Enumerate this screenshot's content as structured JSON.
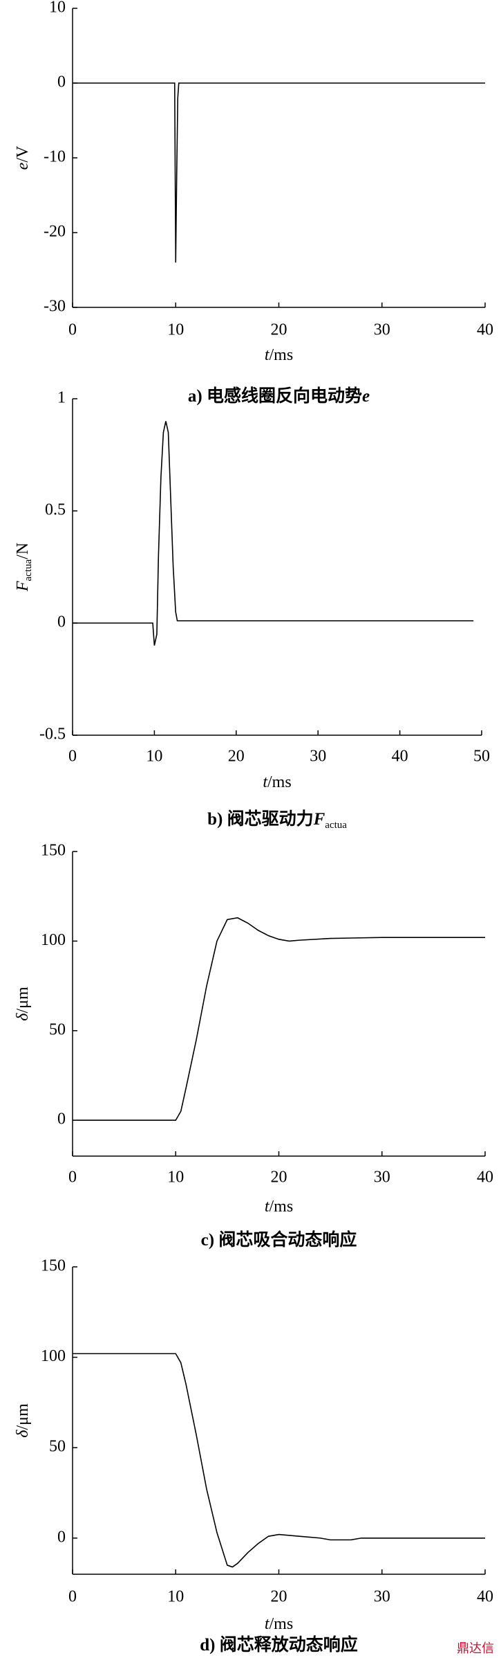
{
  "chart_data": [
    {
      "type": "line",
      "x_label": [
        {
          "text": "t",
          "italic": true
        },
        {
          "text": "/ms"
        }
      ],
      "y_label": [
        {
          "text": "e",
          "italic": true
        },
        {
          "text": "/V"
        }
      ],
      "caption": [
        {
          "text": "a)  电感线圈反向电动势"
        },
        {
          "text": "e",
          "italic": true
        }
      ],
      "xlim": [
        0,
        40
      ],
      "xticks": [
        0,
        10,
        20,
        30,
        40
      ],
      "ylim": [
        -30,
        10
      ],
      "yticks": [
        -30,
        -20,
        -10,
        0,
        10
      ],
      "color": "#000000",
      "series": [
        {
          "x": [
            0,
            9.9,
            10,
            10.1,
            10.2,
            10.3,
            40
          ],
          "values": [
            0,
            0,
            -24,
            -12,
            -2,
            0,
            0
          ]
        }
      ]
    },
    {
      "type": "line",
      "x_label": [
        {
          "text": "t",
          "italic": true
        },
        {
          "text": "/ms"
        }
      ],
      "y_label": [
        {
          "text": "F",
          "italic": true
        },
        {
          "text": "actua",
          "sub": true
        },
        {
          "text": "/N"
        }
      ],
      "caption": [
        {
          "text": "b)  阀芯驱动力"
        },
        {
          "text": "F",
          "italic": true
        },
        {
          "text": "actua",
          "sub": true
        }
      ],
      "xlim": [
        0,
        50
      ],
      "xticks": [
        0,
        10,
        20,
        30,
        40,
        50
      ],
      "ylim": [
        -0.5,
        1
      ],
      "yticks": [
        -0.5,
        0,
        0.5,
        1
      ],
      "color": "#000000",
      "series": [
        {
          "x": [
            0,
            9.8,
            10,
            10.3,
            10.5,
            10.8,
            11.1,
            11.4,
            11.7,
            12,
            12.3,
            12.6,
            12.8,
            49
          ],
          "values": [
            0,
            0,
            -0.1,
            -0.05,
            0.3,
            0.65,
            0.85,
            0.9,
            0.85,
            0.55,
            0.25,
            0.05,
            0.01,
            0.01
          ]
        }
      ]
    },
    {
      "type": "line",
      "x_label": [
        {
          "text": "t",
          "italic": true
        },
        {
          "text": "/ms"
        }
      ],
      "y_label": [
        {
          "text": "δ",
          "italic": true
        },
        {
          "text": "/μm"
        }
      ],
      "caption": [
        {
          "text": "c)  阀芯吸合动态响应"
        }
      ],
      "xlim": [
        0,
        40
      ],
      "xticks": [
        0,
        10,
        20,
        30,
        40
      ],
      "ylim": [
        -20,
        150
      ],
      "yticks": [
        0,
        50,
        100,
        150
      ],
      "color": "#000000",
      "series": [
        {
          "x": [
            0,
            10,
            10.5,
            11,
            12,
            13,
            14,
            15,
            16,
            17,
            18,
            19,
            20,
            21,
            22,
            25,
            30,
            40
          ],
          "values": [
            0,
            0,
            5,
            18,
            45,
            75,
            100,
            112,
            113,
            110,
            106,
            103,
            101,
            100,
            100.5,
            101.5,
            102,
            102
          ]
        }
      ]
    },
    {
      "type": "line",
      "x_label": [
        {
          "text": "t",
          "italic": true
        },
        {
          "text": "/ms"
        }
      ],
      "y_label": [
        {
          "text": "δ",
          "italic": true
        },
        {
          "text": "/μm"
        }
      ],
      "caption": [
        {
          "text": "d)  阀芯释放动态响应"
        }
      ],
      "xlim": [
        0,
        40
      ],
      "xticks": [
        0,
        10,
        20,
        30,
        40
      ],
      "ylim": [
        -20,
        150
      ],
      "yticks": [
        0,
        50,
        100,
        150
      ],
      "color": "#000000",
      "series": [
        {
          "x": [
            0,
            10,
            10.5,
            11,
            12,
            13,
            14,
            15,
            15.5,
            16,
            17,
            18,
            19,
            20,
            22,
            24,
            25,
            27,
            28,
            40
          ],
          "values": [
            102,
            102,
            97,
            85,
            57,
            27,
            3,
            -15,
            -16,
            -14,
            -8,
            -3,
            1,
            2,
            1,
            0,
            -1,
            -1,
            0,
            0
          ]
        }
      ]
    }
  ],
  "watermark": "鼎达信"
}
